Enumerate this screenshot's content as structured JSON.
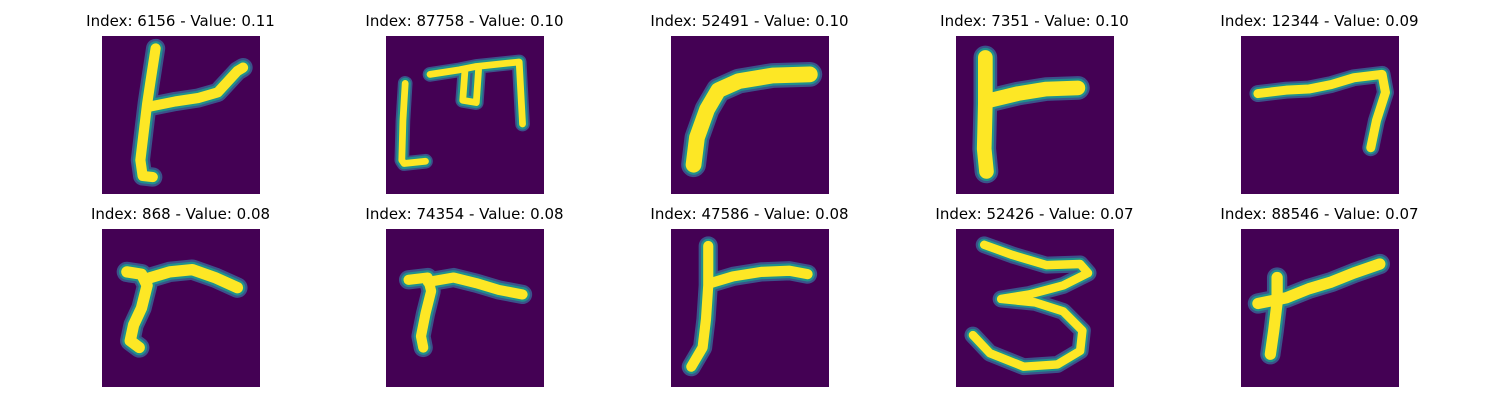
{
  "colors": {
    "background": "#440154",
    "edge_inner": "#21908c",
    "edge_outer": "#3b528b",
    "stroke_core": "#fde725",
    "stroke_mid": "#5ec962"
  },
  "panels": [
    {
      "title": "Index: 6156 - Value: 0.11",
      "glyph": "t"
    },
    {
      "title": "Index: 87758 - Value: 0.10",
      "glyph": "m"
    },
    {
      "title": "Index: 52491 - Value: 0.10",
      "glyph": "r-curve"
    },
    {
      "title": "Index: 7351 - Value: 0.10",
      "glyph": "r-straight"
    },
    {
      "title": "Index: 12344 - Value: 0.09",
      "glyph": "seven"
    },
    {
      "title": "Index: 868 - Value: 0.08",
      "glyph": "r-small"
    },
    {
      "title": "Index: 74354 - Value: 0.08",
      "glyph": "r-small-2"
    },
    {
      "title": "Index: 47586 - Value: 0.08",
      "glyph": "r-tall"
    },
    {
      "title": "Index: 52426 - Value: 0.07",
      "glyph": "three"
    },
    {
      "title": "Index: 88546 - Value: 0.07",
      "glyph": "r-lean"
    }
  ]
}
